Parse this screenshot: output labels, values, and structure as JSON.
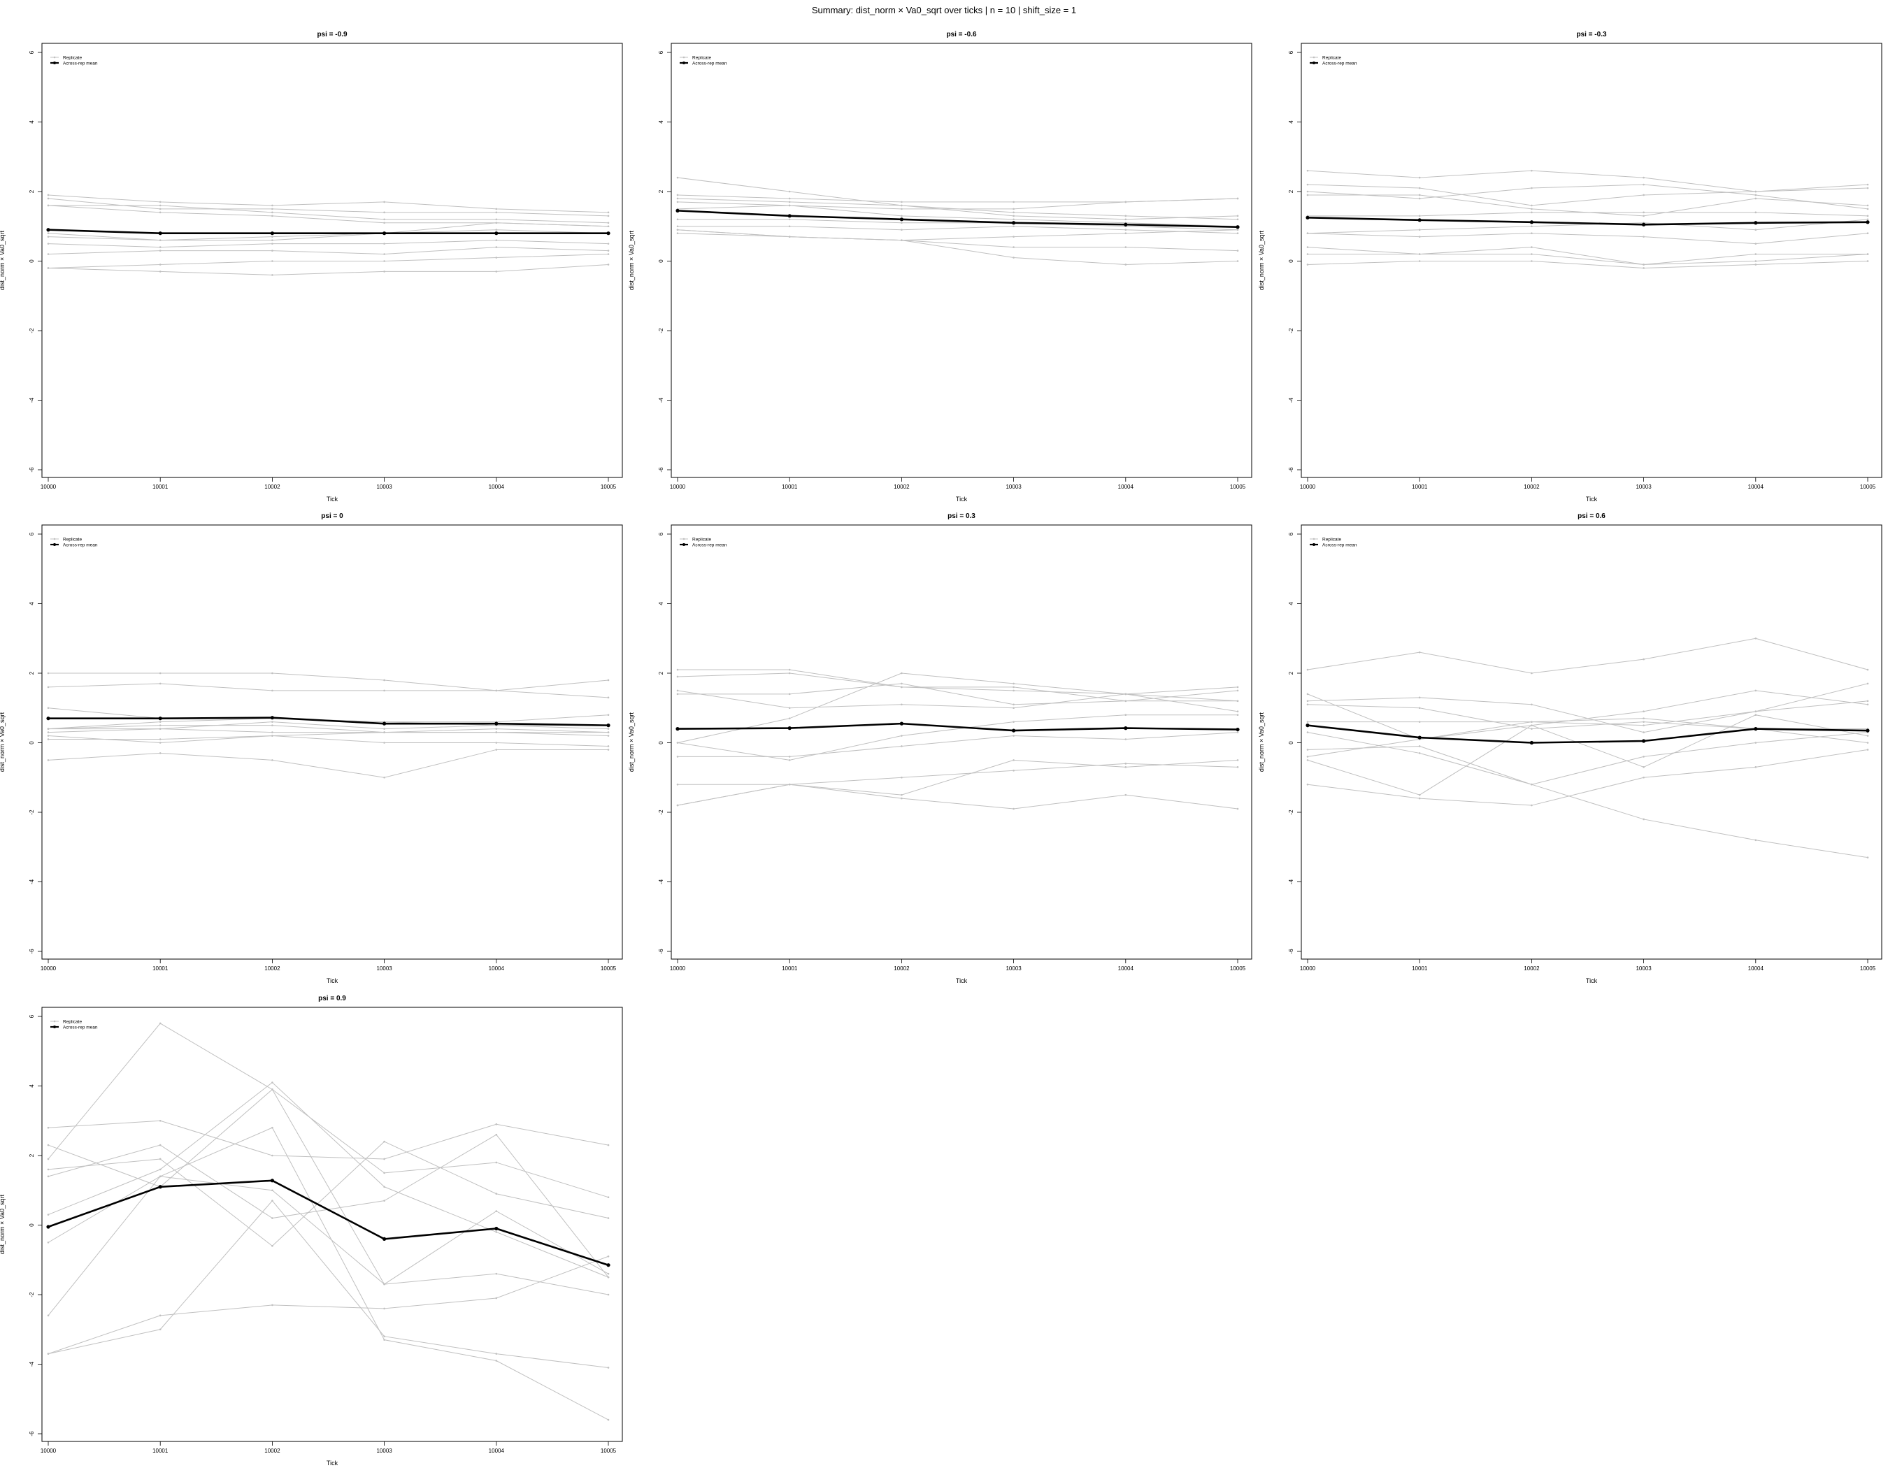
{
  "suptitle": "Summary: dist_norm × Va0_sqrt over ticks | n = 10 | shift_size = 1",
  "chart_data": [
    {
      "type": "line",
      "title": "psi = -0.9",
      "xlabel": "Tick",
      "ylabel": "dist_norm × Va0_sqrt",
      "x": [
        10000,
        10001,
        10002,
        10003,
        10004,
        10005
      ],
      "ylim": [
        -6,
        6
      ],
      "yticks": [
        -6,
        -4,
        -2,
        0,
        2,
        4,
        6
      ],
      "grid": false,
      "legend": {
        "position": "top-left",
        "entries": [
          "Replicate",
          "Across-rep mean"
        ]
      },
      "replicates": [
        [
          1.9,
          1.7,
          1.6,
          1.7,
          1.5,
          1.4
        ],
        [
          1.8,
          1.5,
          1.5,
          1.4,
          1.4,
          1.3
        ],
        [
          1.6,
          1.6,
          1.4,
          1.2,
          1.2,
          1.1
        ],
        [
          1.6,
          1.4,
          1.3,
          1.1,
          1.1,
          1.0
        ],
        [
          0.8,
          0.6,
          0.7,
          0.8,
          1.1,
          1.0
        ],
        [
          0.7,
          0.6,
          0.6,
          0.8,
          0.9,
          0.8
        ],
        [
          0.5,
          0.4,
          0.5,
          0.5,
          0.6,
          0.5
        ],
        [
          0.2,
          0.3,
          0.3,
          0.2,
          0.4,
          0.3
        ],
        [
          -0.2,
          -0.1,
          0.0,
          0.0,
          0.1,
          0.2
        ],
        [
          -0.2,
          -0.3,
          -0.4,
          -0.3,
          -0.3,
          -0.1
        ]
      ],
      "mean": [
        0.9,
        0.8,
        0.8,
        0.8,
        0.8,
        0.8
      ]
    },
    {
      "type": "line",
      "title": "psi = -0.6",
      "xlabel": "Tick",
      "ylabel": "dist_norm × Va0_sqrt",
      "x": [
        10000,
        10001,
        10002,
        10003,
        10004,
        10005
      ],
      "ylim": [
        -6,
        6
      ],
      "yticks": [
        -6,
        -4,
        -2,
        0,
        2,
        4,
        6
      ],
      "grid": false,
      "legend": {
        "position": "top-left",
        "entries": [
          "Replicate",
          "Across-rep mean"
        ]
      },
      "replicates": [
        [
          2.4,
          2.0,
          1.6,
          1.3,
          1.2,
          1.3
        ],
        [
          1.9,
          1.8,
          1.7,
          1.7,
          1.7,
          1.8
        ],
        [
          1.8,
          1.7,
          1.6,
          1.4,
          1.3,
          1.2
        ],
        [
          1.7,
          1.6,
          1.5,
          1.5,
          1.7,
          1.8
        ],
        [
          1.5,
          1.6,
          1.3,
          1.2,
          1.1,
          1.0
        ],
        [
          1.2,
          1.2,
          1.1,
          1.1,
          1.0,
          0.9
        ],
        [
          1.0,
          1.0,
          0.9,
          1.0,
          0.9,
          0.8
        ],
        [
          0.9,
          0.7,
          0.6,
          0.4,
          0.4,
          0.3
        ],
        [
          0.9,
          0.7,
          0.6,
          0.1,
          -0.1,
          0.0
        ],
        [
          0.8,
          0.7,
          0.6,
          0.7,
          0.8,
          0.9
        ]
      ],
      "mean": [
        1.45,
        1.3,
        1.2,
        1.1,
        1.05,
        0.98
      ]
    },
    {
      "type": "line",
      "title": "psi = -0.3",
      "xlabel": "Tick",
      "ylabel": "dist_norm × Va0_sqrt",
      "x": [
        10000,
        10001,
        10002,
        10003,
        10004,
        10005
      ],
      "ylim": [
        -6,
        6
      ],
      "yticks": [
        -6,
        -4,
        -2,
        0,
        2,
        4,
        6
      ],
      "grid": false,
      "legend": {
        "position": "top-left",
        "entries": [
          "Replicate",
          "Across-rep mean"
        ]
      },
      "replicates": [
        [
          2.6,
          2.4,
          2.6,
          2.4,
          2.0,
          2.2
        ],
        [
          2.2,
          2.1,
          1.6,
          1.9,
          2.0,
          2.1
        ],
        [
          2.0,
          1.8,
          2.1,
          2.2,
          1.9,
          1.5
        ],
        [
          1.9,
          1.9,
          1.5,
          1.3,
          1.8,
          1.6
        ],
        [
          1.3,
          1.3,
          1.4,
          1.4,
          1.4,
          1.3
        ],
        [
          0.8,
          0.7,
          0.8,
          0.7,
          0.5,
          0.8
        ],
        [
          0.8,
          0.9,
          1.0,
          1.1,
          0.9,
          1.2
        ],
        [
          0.4,
          0.2,
          0.2,
          -0.1,
          0.2,
          0.2
        ],
        [
          0.2,
          0.2,
          0.4,
          -0.1,
          0.0,
          0.2
        ],
        [
          -0.1,
          0.0,
          0.0,
          -0.2,
          -0.1,
          0.0
        ]
      ],
      "mean": [
        1.25,
        1.18,
        1.12,
        1.05,
        1.1,
        1.12
      ]
    },
    {
      "type": "line",
      "title": "psi = 0",
      "xlabel": "Tick",
      "ylabel": "dist_norm × Va0_sqrt",
      "x": [
        10000,
        10001,
        10002,
        10003,
        10004,
        10005
      ],
      "ylim": [
        -6,
        6
      ],
      "yticks": [
        -6,
        -4,
        -2,
        0,
        2,
        4,
        6
      ],
      "grid": false,
      "legend": {
        "position": "top-left",
        "entries": [
          "Replicate",
          "Across-rep mean"
        ]
      },
      "replicates": [
        [
          2.0,
          2.0,
          2.0,
          1.8,
          1.5,
          1.8
        ],
        [
          1.6,
          1.7,
          1.5,
          1.5,
          1.5,
          1.3
        ],
        [
          1.0,
          0.7,
          0.7,
          0.6,
          0.6,
          0.8
        ],
        [
          0.4,
          0.6,
          0.7,
          0.6,
          0.5,
          0.4
        ],
        [
          0.4,
          0.5,
          0.5,
          0.3,
          0.3,
          0.2
        ],
        [
          0.3,
          0.4,
          0.3,
          0.3,
          0.3,
          0.3
        ],
        [
          0.4,
          0.4,
          0.6,
          0.4,
          0.5,
          0.5
        ],
        [
          0.2,
          0.0,
          0.2,
          0.3,
          0.4,
          0.3
        ],
        [
          0.1,
          0.1,
          0.2,
          0.0,
          0.0,
          -0.1
        ],
        [
          -0.5,
          -0.3,
          -0.5,
          -1.0,
          -0.2,
          -0.2
        ]
      ],
      "mean": [
        0.7,
        0.7,
        0.72,
        0.55,
        0.55,
        0.5
      ]
    },
    {
      "type": "line",
      "title": "psi = 0.3",
      "xlabel": "Tick",
      "ylabel": "dist_norm × Va0_sqrt",
      "x": [
        10000,
        10001,
        10002,
        10003,
        10004,
        10005
      ],
      "ylim": [
        -6,
        6
      ],
      "yticks": [
        -6,
        -4,
        -2,
        0,
        2,
        4,
        6
      ],
      "grid": false,
      "legend": {
        "position": "top-left",
        "entries": [
          "Replicate",
          "Across-rep mean"
        ]
      },
      "replicates": [
        [
          2.1,
          2.1,
          1.6,
          1.5,
          1.4,
          1.6
        ],
        [
          1.9,
          2.0,
          1.6,
          1.6,
          1.2,
          1.5
        ],
        [
          1.5,
          1.0,
          1.1,
          1.0,
          1.4,
          1.2
        ],
        [
          1.4,
          1.4,
          1.7,
          1.1,
          1.2,
          1.2
        ],
        [
          0.0,
          0.7,
          2.0,
          1.7,
          1.4,
          0.9
        ],
        [
          0.0,
          -0.5,
          0.2,
          0.6,
          0.8,
          0.8
        ],
        [
          -0.4,
          -0.4,
          -0.1,
          0.2,
          0.1,
          0.3
        ],
        [
          -1.2,
          -1.2,
          -1.5,
          -0.5,
          -0.7,
          -0.5
        ],
        [
          -1.8,
          -1.2,
          -1.0,
          -0.8,
          -0.6,
          -0.7
        ],
        [
          -1.8,
          -1.2,
          -1.6,
          -1.9,
          -1.5,
          -1.9
        ]
      ],
      "mean": [
        0.4,
        0.42,
        0.55,
        0.35,
        0.42,
        0.38
      ]
    },
    {
      "type": "line",
      "title": "psi = 0.6",
      "xlabel": "Tick",
      "ylabel": "dist_norm × Va0_sqrt",
      "x": [
        10000,
        10001,
        10002,
        10003,
        10004,
        10005
      ],
      "ylim": [
        -6,
        6
      ],
      "yticks": [
        -6,
        -4,
        -2,
        0,
        2,
        4,
        6
      ],
      "grid": false,
      "legend": {
        "position": "top-left",
        "entries": [
          "Replicate",
          "Across-rep mean"
        ]
      },
      "replicates": [
        [
          2.1,
          2.6,
          2.0,
          2.4,
          3.0,
          2.1
        ],
        [
          1.4,
          0.1,
          0.5,
          0.9,
          1.5,
          1.1
        ],
        [
          1.2,
          1.3,
          1.1,
          0.3,
          0.9,
          1.2
        ],
        [
          1.1,
          1.0,
          0.4,
          0.6,
          0.4,
          0.0
        ],
        [
          0.6,
          0.6,
          0.6,
          0.7,
          0.4,
          0.4
        ],
        [
          -0.4,
          0.1,
          0.6,
          0.5,
          0.9,
          1.7
        ],
        [
          -0.2,
          -0.1,
          -1.2,
          -0.4,
          0.0,
          0.3
        ],
        [
          -0.5,
          -1.5,
          0.5,
          -0.7,
          0.8,
          0.2
        ],
        [
          -1.2,
          -1.6,
          -1.8,
          -1.0,
          -0.7,
          -0.2
        ],
        [
          0.3,
          -0.3,
          -1.2,
          -2.2,
          -2.8,
          -3.3
        ]
      ],
      "mean": [
        0.5,
        0.15,
        0.0,
        0.05,
        0.4,
        0.35
      ]
    },
    {
      "type": "line",
      "title": "psi = 0.9",
      "xlabel": "Tick",
      "ylabel": "dist_norm × Va0_sqrt",
      "x": [
        10000,
        10001,
        10002,
        10003,
        10004,
        10005
      ],
      "ylim": [
        -6,
        6
      ],
      "yticks": [
        -6,
        -4,
        -2,
        0,
        2,
        4,
        6
      ],
      "grid": false,
      "legend": {
        "position": "top-left",
        "entries": [
          "Replicate",
          "Across-rep mean"
        ]
      },
      "replicates": [
        [
          2.8,
          3.0,
          2.0,
          1.9,
          2.9,
          2.3
        ],
        [
          2.3,
          1.1,
          3.9,
          1.5,
          1.8,
          0.8
        ],
        [
          1.9,
          5.8,
          3.9,
          -1.7,
          -1.4,
          -2.0
        ],
        [
          1.6,
          1.9,
          -0.6,
          2.4,
          0.9,
          0.2
        ],
        [
          1.4,
          2.3,
          0.2,
          0.7,
          2.6,
          -1.5
        ],
        [
          0.3,
          1.6,
          4.1,
          1.1,
          -0.2,
          -1.5
        ],
        [
          -2.6,
          1.4,
          1.0,
          -1.7,
          0.4,
          -1.4
        ],
        [
          -3.7,
          -2.6,
          -2.3,
          -2.4,
          -2.1,
          -0.9
        ],
        [
          -3.7,
          -3.0,
          0.7,
          -3.2,
          -3.7,
          -4.1
        ],
        [
          -0.5,
          1.4,
          2.8,
          -3.3,
          -3.9,
          -5.6
        ]
      ],
      "mean": [
        -0.05,
        1.1,
        1.28,
        -0.4,
        -0.1,
        -1.15
      ]
    }
  ]
}
